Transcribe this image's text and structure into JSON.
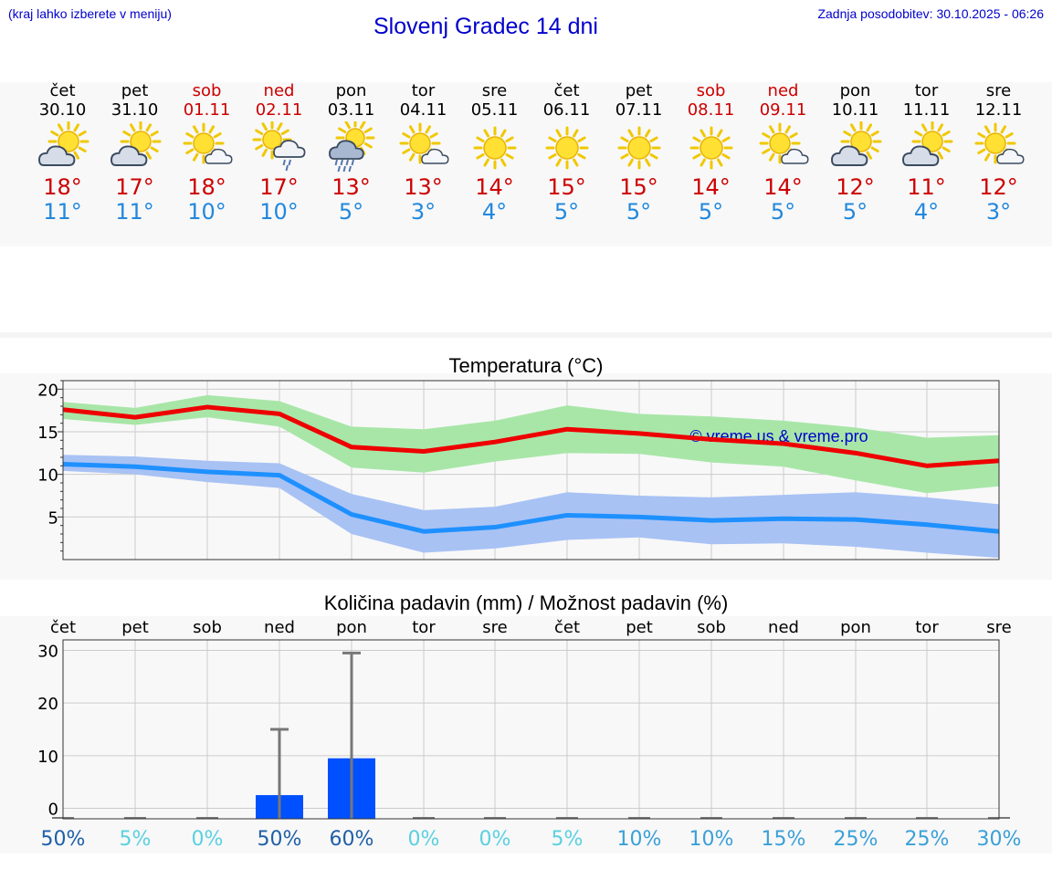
{
  "header": {
    "menu_hint": "(kraj lahko izberete v meniju)",
    "title": "Slovenj Gradec 14 dni",
    "last_update": "Zadnja posodobitev: 30.10.2025 - 06:26"
  },
  "colors": {
    "weekend": "#cc0000",
    "tmax": "#cc0000",
    "tmin": "#2288dd",
    "max_line": "#ee0000",
    "max_band": "#a8e6a8",
    "min_line": "#1e90ff",
    "min_band": "#a8c2f4",
    "bar": "#0050ff"
  },
  "forecast": [
    {
      "day": "čet",
      "date": "30.10",
      "weekend": false,
      "icon": "partly-cloudy-icon",
      "tmax": "18°",
      "tmin": "11°"
    },
    {
      "day": "pet",
      "date": "31.10",
      "weekend": false,
      "icon": "partly-cloudy-icon",
      "tmax": "17°",
      "tmin": "11°"
    },
    {
      "day": "sob",
      "date": "01.11",
      "weekend": true,
      "icon": "sun-small-cloud-icon",
      "tmax": "18°",
      "tmin": "10°"
    },
    {
      "day": "ned",
      "date": "02.11",
      "weekend": true,
      "icon": "sun-cloud-rain-icon",
      "tmax": "17°",
      "tmin": "10°"
    },
    {
      "day": "pon",
      "date": "03.11",
      "weekend": false,
      "icon": "cloud-heavy-rain-icon",
      "tmax": "13°",
      "tmin": "5°"
    },
    {
      "day": "tor",
      "date": "04.11",
      "weekend": false,
      "icon": "sun-small-cloud-icon",
      "tmax": "13°",
      "tmin": "3°"
    },
    {
      "day": "sre",
      "date": "05.11",
      "weekend": false,
      "icon": "sun-icon",
      "tmax": "14°",
      "tmin": "4°"
    },
    {
      "day": "čet",
      "date": "06.11",
      "weekend": false,
      "icon": "sun-icon",
      "tmax": "15°",
      "tmin": "5°"
    },
    {
      "day": "pet",
      "date": "07.11",
      "weekend": false,
      "icon": "sun-icon",
      "tmax": "15°",
      "tmin": "5°"
    },
    {
      "day": "sob",
      "date": "08.11",
      "weekend": true,
      "icon": "sun-icon",
      "tmax": "14°",
      "tmin": "5°"
    },
    {
      "day": "ned",
      "date": "09.11",
      "weekend": true,
      "icon": "sun-small-cloud-icon",
      "tmax": "14°",
      "tmin": "5°"
    },
    {
      "day": "pon",
      "date": "10.11",
      "weekend": false,
      "icon": "partly-cloudy-icon",
      "tmax": "12°",
      "tmin": "5°"
    },
    {
      "day": "tor",
      "date": "11.11",
      "weekend": false,
      "icon": "partly-cloudy-icon",
      "tmax": "11°",
      "tmin": "4°"
    },
    {
      "day": "sre",
      "date": "12.11",
      "weekend": false,
      "icon": "sun-small-cloud-icon",
      "tmax": "12°",
      "tmin": "3°"
    }
  ],
  "chart_data": [
    {
      "type": "line",
      "title": "Temperatura (°C)",
      "watermark": "© vreme.us & vreme.pro",
      "ylim": [
        0,
        21
      ],
      "yticks": [
        5,
        10,
        15,
        20
      ],
      "ytick_labels": [
        "5",
        "10",
        "15",
        "20"
      ],
      "grid": true,
      "x": [
        "30.10",
        "31.10",
        "01.11",
        "02.11",
        "03.11",
        "04.11",
        "05.11",
        "06.11",
        "07.11",
        "08.11",
        "09.11",
        "10.11",
        "11.11",
        "12.11"
      ],
      "series": [
        {
          "name": "max",
          "values": [
            17.6,
            16.7,
            17.9,
            17.1,
            13.2,
            12.7,
            13.8,
            15.3,
            14.8,
            14.1,
            13.6,
            12.5,
            11.0,
            11.6
          ],
          "band_low": [
            16.5,
            15.8,
            16.7,
            15.6,
            10.8,
            10.2,
            11.5,
            12.5,
            12.4,
            11.4,
            10.9,
            9.3,
            7.8,
            8.6
          ],
          "band_high": [
            18.5,
            17.8,
            19.3,
            18.6,
            15.6,
            15.3,
            16.3,
            18.1,
            17.1,
            16.8,
            16.3,
            15.5,
            14.3,
            14.6
          ]
        },
        {
          "name": "min",
          "values": [
            11.2,
            10.9,
            10.3,
            9.9,
            5.3,
            3.3,
            3.8,
            5.2,
            5.0,
            4.6,
            4.8,
            4.7,
            4.1,
            3.3
          ],
          "band_low": [
            10.4,
            10.0,
            9.1,
            8.4,
            3.0,
            0.8,
            1.3,
            2.3,
            2.6,
            1.8,
            1.9,
            1.5,
            0.8,
            0.2
          ],
          "band_high": [
            12.3,
            12.1,
            11.6,
            11.3,
            7.7,
            5.8,
            6.2,
            7.9,
            7.5,
            7.3,
            7.6,
            7.9,
            7.3,
            6.5
          ]
        }
      ]
    },
    {
      "type": "bar",
      "title": "Količina padavin (mm) / Možnost padavin (%)",
      "ylim": [
        -2,
        32
      ],
      "yticks": [
        0,
        10,
        20,
        30
      ],
      "ytick_labels": [
        "0",
        "10",
        "20",
        "30"
      ],
      "grid": true,
      "categories": [
        "čet",
        "pet",
        "sob",
        "ned",
        "pon",
        "tor",
        "sre",
        "čet",
        "pet",
        "sob",
        "ned",
        "pon",
        "tor",
        "sre"
      ],
      "values": [
        0,
        0,
        0,
        2.5,
        9.5,
        0,
        0,
        0,
        0,
        0,
        0,
        0,
        0,
        0
      ],
      "error_high": [
        0,
        0,
        0,
        15,
        29.5,
        0,
        0,
        0,
        0,
        0,
        0,
        0,
        0,
        0
      ],
      "probability": [
        "50%",
        "5%",
        "0%",
        "50%",
        "60%",
        "0%",
        "0%",
        "5%",
        "10%",
        "10%",
        "15%",
        "25%",
        "25%",
        "30%"
      ],
      "probability_colors": [
        "#1f5fa8",
        "#5ad0e0",
        "#5ad0e0",
        "#1f5fa8",
        "#1f5fa8",
        "#5ad0e0",
        "#5ad0e0",
        "#5ad0e0",
        "#3aa0d8",
        "#3aa0d8",
        "#3aa0d8",
        "#3aa0d8",
        "#3aa0d8",
        "#3aa0d8"
      ]
    }
  ]
}
